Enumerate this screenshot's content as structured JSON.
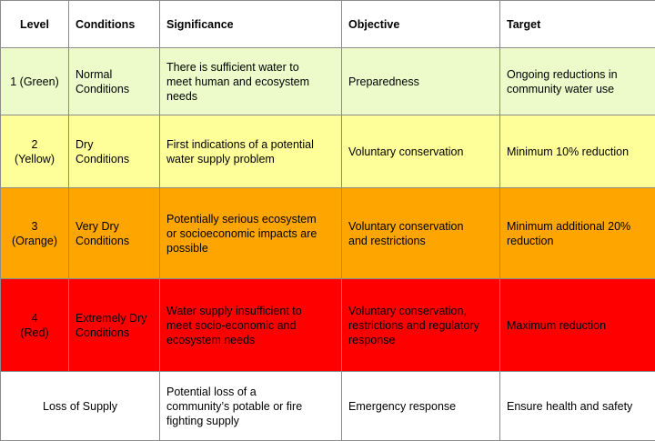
{
  "table": {
    "headers": {
      "level": "Level",
      "conditions": "Conditions",
      "significance": "Significance",
      "objective": "Objective",
      "target": "Target"
    },
    "rows": [
      {
        "level": "1 (Green)",
        "conditions": "Normal\nConditions",
        "significance": "There is sufficient water to\nmeet human and ecosystem\nneeds",
        "objective": "Preparedness",
        "target": "Ongoing reductions in\ncommunity water use",
        "color": "#ecfbc9"
      },
      {
        "level": "2\n(Yellow)",
        "conditions": "Dry\nConditions",
        "significance": "First indications of a potential\nwater supply problem",
        "objective": "Voluntary conservation",
        "target": "Minimum 10% reduction",
        "color": "#ffff99"
      },
      {
        "level": "3\n(Orange)",
        "conditions": "Very Dry\nConditions",
        "significance": "Potentially serious ecosystem\nor socioeconomic impacts are\npossible",
        "objective": "Voluntary conservation\nand restrictions",
        "target": "Minimum additional 20%\nreduction",
        "color": "#ffa500"
      },
      {
        "level": "4\n(Red)",
        "conditions": "Extremely Dry\nConditions",
        "significance": "Water supply insufficient to\nmeet socio-economic and\necosystem needs",
        "objective": "Voluntary conservation,\nrestrictions and regulatory\nresponse",
        "target": "Maximum reduction",
        "color": "#ff0000"
      }
    ],
    "loss_row": {
      "level_conditions": "Loss of Supply",
      "significance": "Potential loss of a\ncommunity’s potable or fire\nfighting supply",
      "objective": "Emergency response",
      "target": "Ensure health and safety",
      "color": "#ffffff"
    }
  }
}
